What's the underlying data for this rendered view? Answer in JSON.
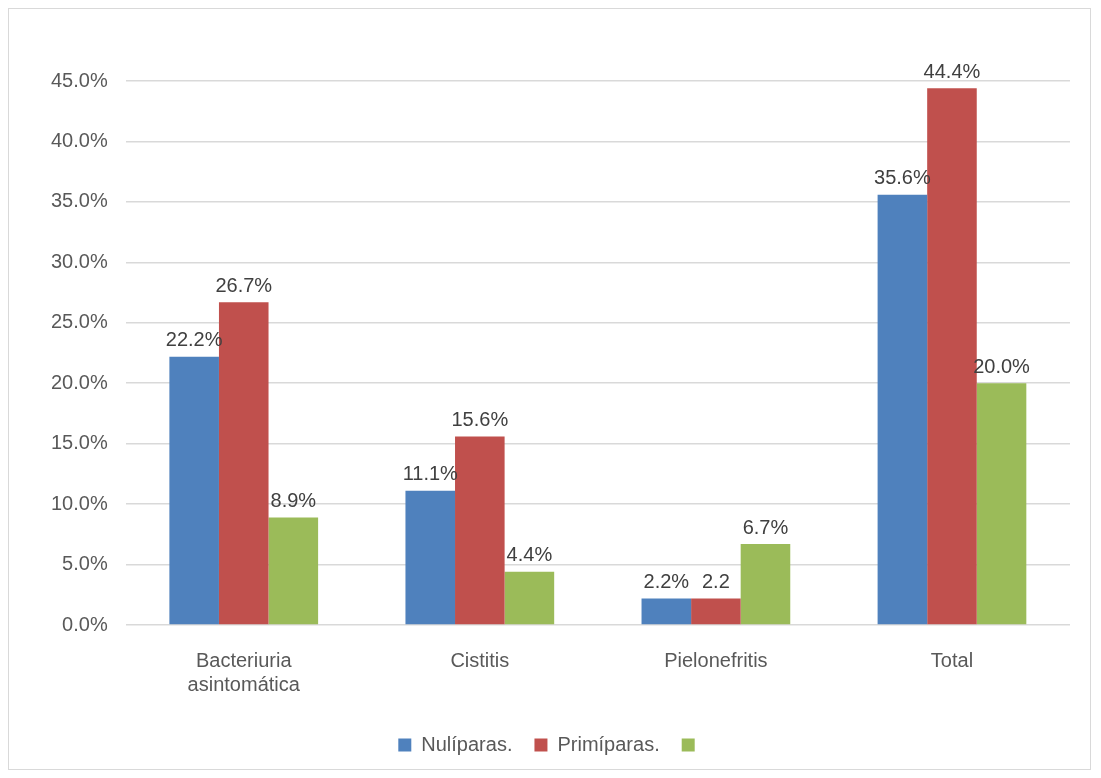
{
  "chart_data": {
    "type": "bar",
    "categories": [
      "Bacteriuria asintomática",
      "Cistitis",
      "Pielonefritis",
      "Total"
    ],
    "series": [
      {
        "name": "Nulíparas.",
        "color": "#4f81bd",
        "values": [
          22.2,
          11.1,
          2.2,
          35.6
        ],
        "value_labels": [
          "22.2%",
          "11.1%",
          "2.2%",
          "35.6%"
        ]
      },
      {
        "name": "Primíparas.",
        "color": "#c0504d",
        "values": [
          26.7,
          15.6,
          2.2,
          44.4
        ],
        "value_labels": [
          "26.7%",
          "15.6%",
          "2.2",
          "44.4%"
        ]
      },
      {
        "color": "#9bbb59",
        "values": [
          8.9,
          4.4,
          6.7,
          20.0
        ],
        "value_labels": [
          "8.9%",
          "4.4%",
          "6.7%",
          "20.0%"
        ]
      }
    ],
    "ylim": [
      0,
      45
    ],
    "yticks": [
      {
        "value": 0,
        "label": "0.0%"
      },
      {
        "value": 5,
        "label": "5.0%"
      },
      {
        "value": 10,
        "label": "10.0%"
      },
      {
        "value": 15,
        "label": "15.0%"
      },
      {
        "value": 20,
        "label": "20.0%"
      },
      {
        "value": 25,
        "label": "25.0%"
      },
      {
        "value": 30,
        "label": "30.0%"
      },
      {
        "value": 35,
        "label": "35.0%"
      },
      {
        "value": 40,
        "label": "40.0%"
      },
      {
        "value": 45,
        "label": "45.0%"
      }
    ],
    "grid": "y",
    "legend": "bottom"
  }
}
